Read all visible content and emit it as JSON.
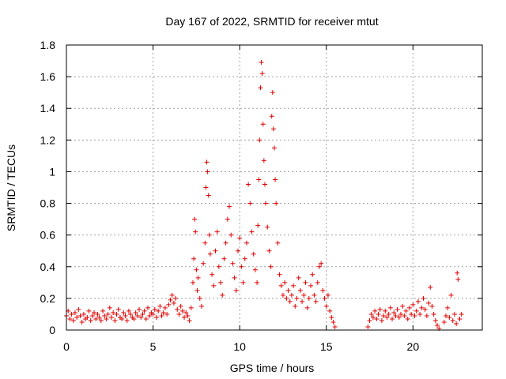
{
  "chart_data": {
    "type": "scatter",
    "title": "Day 167 of 2022, SRMTID for receiver mtut",
    "xlabel": "GPS time / hours",
    "ylabel": "SRMTID / TECUs",
    "xlim": [
      0,
      24
    ],
    "ylim": [
      0,
      1.8
    ],
    "xticks": [
      0,
      5,
      10,
      15,
      20
    ],
    "xtick_labels": [
      "0",
      "5",
      "10",
      "15",
      "20"
    ],
    "yticks": [
      0,
      0.2,
      0.4,
      0.6,
      0.8,
      1.0,
      1.2,
      1.4,
      1.6,
      1.8
    ],
    "ytick_labels": [
      "0",
      "0.2",
      "0.4",
      "0.6",
      "0.8",
      "1",
      "1.2",
      "1.4",
      "1.6",
      "1.8"
    ],
    "grid": true,
    "marker": "plus",
    "color": "#e00000",
    "series": [
      {
        "points": [
          [
            0.0,
            0.09
          ],
          [
            0.1,
            0.12
          ],
          [
            0.2,
            0.07
          ],
          [
            0.3,
            0.1
          ],
          [
            0.4,
            0.06
          ],
          [
            0.5,
            0.11
          ],
          [
            0.6,
            0.08
          ],
          [
            0.7,
            0.13
          ],
          [
            0.8,
            0.09
          ],
          [
            0.9,
            0.05
          ],
          [
            1.0,
            0.1
          ],
          [
            1.1,
            0.07
          ],
          [
            1.2,
            0.08
          ],
          [
            1.3,
            0.12
          ],
          [
            1.4,
            0.06
          ],
          [
            1.5,
            0.09
          ],
          [
            1.6,
            0.11
          ],
          [
            1.7,
            0.07
          ],
          [
            1.8,
            0.1
          ],
          [
            1.9,
            0.08
          ],
          [
            2.0,
            0.06
          ],
          [
            2.1,
            0.12
          ],
          [
            2.2,
            0.09
          ],
          [
            2.3,
            0.07
          ],
          [
            2.4,
            0.1
          ],
          [
            2.5,
            0.14
          ],
          [
            2.6,
            0.08
          ],
          [
            2.7,
            0.11
          ],
          [
            2.8,
            0.06
          ],
          [
            2.9,
            0.1
          ],
          [
            3.0,
            0.13
          ],
          [
            3.1,
            0.08
          ],
          [
            3.2,
            0.07
          ],
          [
            3.3,
            0.11
          ],
          [
            3.4,
            0.09
          ],
          [
            3.5,
            0.06
          ],
          [
            3.6,
            0.12
          ],
          [
            3.7,
            0.1
          ],
          [
            3.8,
            0.08
          ],
          [
            3.9,
            0.07
          ],
          [
            4.0,
            0.11
          ],
          [
            4.1,
            0.09
          ],
          [
            4.2,
            0.13
          ],
          [
            4.3,
            0.08
          ],
          [
            4.4,
            0.1
          ],
          [
            4.5,
            0.12
          ],
          [
            4.6,
            0.07
          ],
          [
            4.7,
            0.14
          ],
          [
            4.8,
            0.09
          ],
          [
            4.9,
            0.11
          ],
          [
            5.0,
            0.1
          ],
          [
            5.1,
            0.13
          ],
          [
            5.2,
            0.08
          ],
          [
            5.3,
            0.12
          ],
          [
            5.4,
            0.15
          ],
          [
            5.5,
            0.09
          ],
          [
            5.6,
            0.11
          ],
          [
            5.7,
            0.14
          ],
          [
            5.8,
            0.1
          ],
          [
            5.9,
            0.16
          ],
          [
            6.0,
            0.19
          ],
          [
            6.1,
            0.22
          ],
          [
            6.2,
            0.17
          ],
          [
            6.3,
            0.2
          ],
          [
            6.4,
            0.13
          ],
          [
            6.5,
            0.1
          ],
          [
            6.6,
            0.15
          ],
          [
            6.7,
            0.12
          ],
          [
            6.8,
            0.08
          ],
          [
            6.9,
            0.11
          ],
          [
            7.0,
            0.09
          ],
          [
            7.1,
            0.06
          ],
          [
            7.2,
            0.14
          ],
          [
            7.3,
            0.3
          ],
          [
            7.35,
            0.45
          ],
          [
            7.4,
            0.7
          ],
          [
            7.45,
            0.62
          ],
          [
            7.5,
            0.38
          ],
          [
            7.55,
            0.25
          ],
          [
            7.6,
            0.33
          ],
          [
            7.7,
            0.2
          ],
          [
            7.8,
            0.15
          ],
          [
            7.9,
            0.42
          ],
          [
            8.0,
            0.55
          ],
          [
            8.05,
            0.9
          ],
          [
            8.1,
            1.06
          ],
          [
            8.15,
            1.0
          ],
          [
            8.2,
            0.85
          ],
          [
            8.25,
            0.6
          ],
          [
            8.3,
            0.48
          ],
          [
            8.4,
            0.35
          ],
          [
            8.5,
            0.28
          ],
          [
            8.6,
            0.5
          ],
          [
            8.7,
            0.62
          ],
          [
            8.8,
            0.4
          ],
          [
            8.9,
            0.3
          ],
          [
            9.0,
            0.22
          ],
          [
            9.1,
            0.45
          ],
          [
            9.2,
            0.55
          ],
          [
            9.3,
            0.7
          ],
          [
            9.4,
            0.78
          ],
          [
            9.5,
            0.6
          ],
          [
            9.6,
            0.42
          ],
          [
            9.7,
            0.33
          ],
          [
            9.8,
            0.25
          ],
          [
            9.9,
            0.5
          ],
          [
            10.0,
            0.58
          ],
          [
            10.1,
            0.4
          ],
          [
            10.2,
            0.3
          ],
          [
            10.3,
            0.45
          ],
          [
            10.4,
            0.55
          ],
          [
            10.5,
            0.92
          ],
          [
            10.6,
            0.8
          ],
          [
            10.7,
            0.62
          ],
          [
            10.8,
            0.48
          ],
          [
            10.9,
            0.38
          ],
          [
            11.0,
            0.3
          ],
          [
            11.05,
            0.66
          ],
          [
            11.1,
            0.95
          ],
          [
            11.15,
            1.2
          ],
          [
            11.2,
            1.53
          ],
          [
            11.25,
            1.69
          ],
          [
            11.3,
            1.62
          ],
          [
            11.35,
            1.3
          ],
          [
            11.4,
            1.07
          ],
          [
            11.45,
            0.92
          ],
          [
            11.5,
            0.8
          ],
          [
            11.6,
            0.65
          ],
          [
            11.7,
            0.5
          ],
          [
            11.8,
            0.4
          ],
          [
            11.85,
            1.35
          ],
          [
            11.9,
            1.5
          ],
          [
            11.95,
            1.27
          ],
          [
            12.0,
            1.15
          ],
          [
            12.05,
            0.95
          ],
          [
            12.1,
            0.8
          ],
          [
            12.2,
            0.55
          ],
          [
            12.3,
            0.35
          ],
          [
            12.4,
            0.28
          ],
          [
            12.5,
            0.22
          ],
          [
            12.6,
            0.3
          ],
          [
            12.7,
            0.2
          ],
          [
            12.8,
            0.25
          ],
          [
            12.9,
            0.18
          ],
          [
            13.0,
            0.22
          ],
          [
            13.1,
            0.28
          ],
          [
            13.2,
            0.15
          ],
          [
            13.3,
            0.2
          ],
          [
            13.4,
            0.33
          ],
          [
            13.5,
            0.25
          ],
          [
            13.6,
            0.18
          ],
          [
            13.7,
            0.22
          ],
          [
            13.8,
            0.3
          ],
          [
            13.9,
            0.14
          ],
          [
            14.0,
            0.2
          ],
          [
            14.1,
            0.28
          ],
          [
            14.2,
            0.35
          ],
          [
            14.3,
            0.22
          ],
          [
            14.4,
            0.18
          ],
          [
            14.5,
            0.3
          ],
          [
            14.6,
            0.4
          ],
          [
            14.7,
            0.42
          ],
          [
            14.8,
            0.25
          ],
          [
            14.9,
            0.2
          ],
          [
            15.0,
            0.15
          ],
          [
            15.1,
            0.22
          ],
          [
            15.2,
            0.12
          ],
          [
            15.3,
            0.08
          ],
          [
            15.4,
            0.05
          ],
          [
            15.5,
            0.02
          ],
          [
            17.4,
            0.02
          ],
          [
            17.5,
            0.06
          ],
          [
            17.6,
            0.1
          ],
          [
            17.7,
            0.08
          ],
          [
            17.8,
            0.12
          ],
          [
            17.9,
            0.07
          ],
          [
            18.0,
            0.1
          ],
          [
            18.1,
            0.13
          ],
          [
            18.2,
            0.06
          ],
          [
            18.3,
            0.09
          ],
          [
            18.4,
            0.12
          ],
          [
            18.5,
            0.08
          ],
          [
            18.6,
            0.1
          ],
          [
            18.7,
            0.14
          ],
          [
            18.8,
            0.07
          ],
          [
            18.9,
            0.11
          ],
          [
            19.0,
            0.09
          ],
          [
            19.1,
            0.13
          ],
          [
            19.2,
            0.08
          ],
          [
            19.3,
            0.1
          ],
          [
            19.4,
            0.15
          ],
          [
            19.5,
            0.09
          ],
          [
            19.6,
            0.12
          ],
          [
            19.7,
            0.07
          ],
          [
            19.8,
            0.14
          ],
          [
            19.9,
            0.1
          ],
          [
            20.0,
            0.16
          ],
          [
            20.1,
            0.09
          ],
          [
            20.2,
            0.12
          ],
          [
            20.3,
            0.18
          ],
          [
            20.4,
            0.1
          ],
          [
            20.5,
            0.14
          ],
          [
            20.6,
            0.2
          ],
          [
            20.7,
            0.13
          ],
          [
            20.8,
            0.09
          ],
          [
            20.9,
            0.17
          ],
          [
            21.0,
            0.27
          ],
          [
            21.1,
            0.15
          ],
          [
            21.2,
            0.1
          ],
          [
            21.3,
            0.06
          ],
          [
            21.4,
            0.03
          ],
          [
            21.5,
            0.01
          ],
          [
            21.8,
            0.05
          ],
          [
            21.9,
            0.09
          ],
          [
            22.0,
            0.14
          ],
          [
            22.1,
            0.08
          ],
          [
            22.2,
            0.22
          ],
          [
            22.3,
            0.06
          ],
          [
            22.4,
            0.1
          ],
          [
            22.5,
            0.04
          ],
          [
            22.55,
            0.36
          ],
          [
            22.6,
            0.32
          ],
          [
            22.7,
            0.07
          ],
          [
            22.8,
            0.1
          ]
        ]
      }
    ]
  }
}
